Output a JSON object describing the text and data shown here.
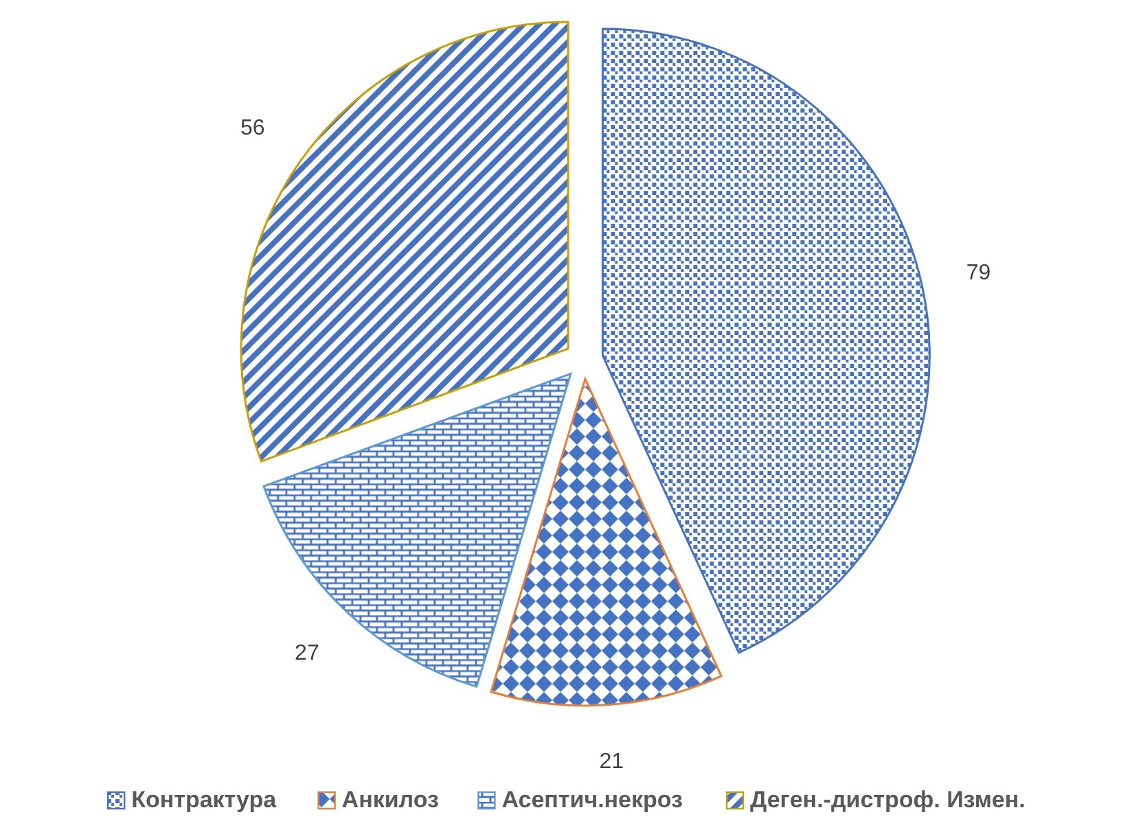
{
  "chart_data": {
    "type": "pie",
    "categories": [
      "Контрактура",
      "Анкилоз",
      "Асептич.некроз",
      "Деген.-дистроф. Измен."
    ],
    "values": [
      79,
      21,
      27,
      56
    ],
    "colors": [
      "#4472c4",
      "#ed7d31",
      "#5b9bd5",
      "#c9a000"
    ],
    "data_labels": true,
    "legend": "bottom"
  }
}
